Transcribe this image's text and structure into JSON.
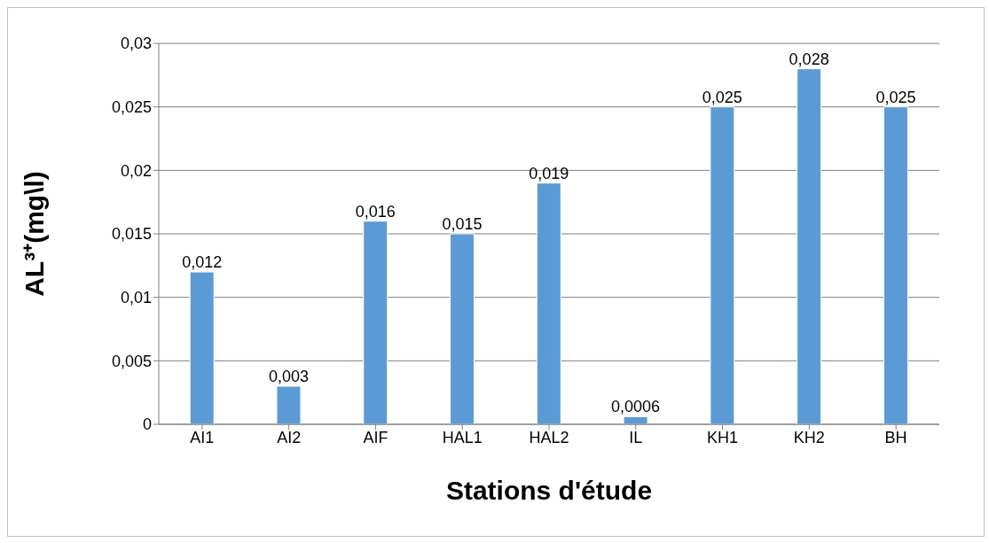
{
  "chart_data": {
    "type": "bar",
    "xlabel": "Stations d'étude",
    "ylabel": "AL³⁺(mg\\l)",
    "categories": [
      "AI1",
      "AI2",
      "AIF",
      "HAL1",
      "HAL2",
      "IL",
      "KH1",
      "KH2",
      "BH"
    ],
    "values": [
      0.012,
      0.003,
      0.016,
      0.015,
      0.019,
      0.0006,
      0.025,
      0.028,
      0.025
    ],
    "value_labels": [
      "0,012",
      "0,003",
      "0,016",
      "0,015",
      "0,019",
      "0,0006",
      "0,025",
      "0,028",
      "0,025"
    ],
    "color": "#5b9bd5",
    "ylim": [
      0,
      0.03
    ],
    "yticks": [
      {
        "value": 0,
        "label": "0"
      },
      {
        "value": 0.005,
        "label": "0,005"
      },
      {
        "value": 0.01,
        "label": "0,01"
      },
      {
        "value": 0.015,
        "label": "0,015"
      },
      {
        "value": 0.02,
        "label": "0,02"
      },
      {
        "value": 0.025,
        "label": "0,025"
      },
      {
        "value": 0.03,
        "label": "0,03"
      }
    ],
    "grid": "y",
    "legend": false
  }
}
